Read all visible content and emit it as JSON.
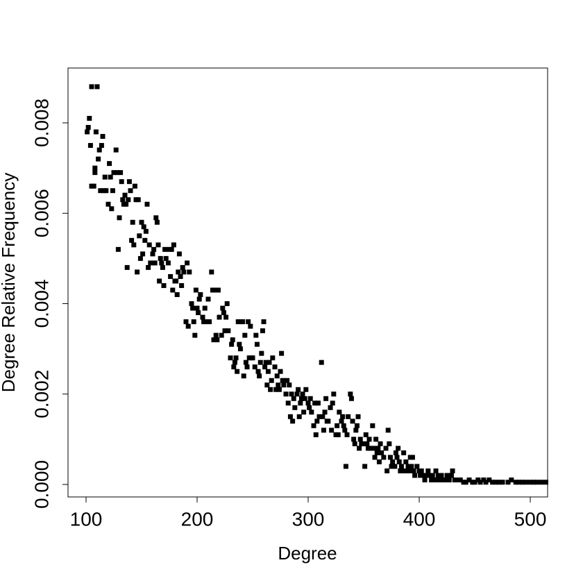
{
  "chart_data": {
    "type": "scatter",
    "xlabel": "Degree",
    "ylabel": "Degree Relative Frequency",
    "color": "#000000",
    "xlim": [
      83.75,
      515.6
    ],
    "ylim": [
      -0.000276,
      0.009213
    ],
    "xticks": [
      100,
      200,
      300,
      400,
      500
    ],
    "yticks": [
      {
        "value": 0,
        "label": "0.000"
      },
      0.002,
      0.004,
      0.006,
      0.008
    ],
    "x": [
      101,
      102,
      103,
      104,
      105,
      105,
      107,
      108,
      108,
      109,
      110,
      111,
      112,
      113,
      114,
      115,
      116,
      117,
      118,
      120,
      121,
      122,
      123,
      124,
      125,
      127,
      128,
      129,
      130,
      131,
      132,
      133,
      134,
      135,
      136,
      137,
      138,
      139,
      140,
      141,
      142,
      143,
      144,
      145,
      146,
      147,
      148,
      149,
      150,
      151,
      152,
      153,
      154,
      155,
      156,
      157,
      158,
      160,
      161,
      162,
      163,
      164,
      165,
      166,
      167,
      168,
      169,
      170,
      171,
      172,
      174,
      175,
      176,
      177,
      178,
      179,
      180,
      181,
      182,
      183,
      184,
      185,
      186,
      187,
      188,
      190,
      191,
      192,
      193,
      195,
      196,
      197,
      198,
      199,
      200,
      201,
      202,
      203,
      205,
      206,
      207,
      208,
      210,
      211,
      213,
      214,
      215,
      216,
      217,
      218,
      219,
      220,
      222,
      223,
      224,
      225,
      226,
      227,
      228,
      230,
      231,
      232,
      233,
      234,
      235,
      236,
      237,
      238,
      239,
      240,
      241,
      242,
      243,
      244,
      245,
      246,
      247,
      248,
      249,
      250,
      252,
      253,
      254,
      255,
      256,
      257,
      258,
      259,
      260,
      261,
      262,
      263,
      264,
      265,
      266,
      267,
      268,
      270,
      271,
      272,
      273,
      274,
      275,
      276,
      277,
      278,
      280,
      281,
      282,
      283,
      284,
      285,
      286,
      287,
      288,
      290,
      291,
      292,
      293,
      294,
      295,
      296,
      297,
      298,
      300,
      301,
      302,
      303,
      305,
      306,
      307,
      308,
      309,
      310,
      312,
      313,
      314,
      315,
      316,
      317,
      318,
      320,
      321,
      322,
      323,
      325,
      326,
      327,
      328,
      330,
      331,
      332,
      333,
      334,
      335,
      336,
      338,
      339,
      340,
      341,
      342,
      343,
      344,
      345,
      346,
      347,
      348,
      350,
      351,
      352,
      353,
      354,
      355,
      356,
      358,
      359,
      360,
      361,
      362,
      363,
      364,
      365,
      366,
      368,
      370,
      371,
      372,
      373,
      374,
      375,
      376,
      378,
      379,
      380,
      381,
      382,
      383,
      384,
      386,
      387,
      388,
      390,
      391,
      392,
      393,
      394,
      395,
      396,
      398,
      400,
      401,
      402,
      404,
      405,
      406,
      408,
      410,
      411,
      412,
      414,
      415,
      417,
      418,
      420,
      422,
      424,
      425,
      427,
      429,
      430,
      432,
      435,
      437,
      440,
      442,
      445,
      448,
      450,
      453,
      455,
      458,
      460,
      463,
      466,
      469,
      472,
      475,
      480,
      483,
      487,
      490,
      493,
      496,
      500,
      503,
      506,
      510,
      514
    ],
    "values": [
      0.0078,
      0.0079,
      0.0081,
      0.0075,
      0.0066,
      0.0088,
      0.0066,
      0.007,
      0.0069,
      0.0078,
      0.0088,
      0.0072,
      0.0074,
      0.0065,
      0.0075,
      0.0077,
      0.0065,
      0.0068,
      0.0065,
      0.0062,
      0.0071,
      0.0068,
      0.0061,
      0.0065,
      0.0069,
      0.0074,
      0.0069,
      0.0052,
      0.0059,
      0.0069,
      0.0067,
      0.0063,
      0.0062,
      0.0064,
      0.0062,
      0.0048,
      0.0063,
      0.0067,
      0.0065,
      0.0054,
      0.0058,
      0.0053,
      0.0066,
      0.0063,
      0.0047,
      0.0063,
      0.0055,
      0.005,
      0.0058,
      0.0051,
      0.0057,
      0.0054,
      0.0056,
      0.0062,
      0.0048,
      0.0053,
      0.0049,
      0.0051,
      0.0052,
      0.0049,
      0.0059,
      0.0058,
      0.0053,
      0.0045,
      0.005,
      0.0049,
      0.0048,
      0.0044,
      0.0052,
      0.005,
      0.0049,
      0.0052,
      0.0046,
      0.0052,
      0.0043,
      0.0053,
      0.0045,
      0.0045,
      0.0042,
      0.0047,
      0.0051,
      0.0046,
      0.0044,
      0.0048,
      0.0047,
      0.0036,
      0.0049,
      0.0035,
      0.0047,
      0.004,
      0.0039,
      0.0036,
      0.0033,
      0.0043,
      0.0039,
      0.0038,
      0.0041,
      0.0042,
      0.0037,
      0.0036,
      0.0039,
      0.0036,
      0.0041,
      0.0036,
      0.0047,
      0.0043,
      0.0032,
      0.0043,
      0.0033,
      0.0032,
      0.0043,
      0.0037,
      0.0033,
      0.0039,
      0.0038,
      0.0034,
      0.0037,
      0.004,
      0.0034,
      0.0028,
      0.0031,
      0.0032,
      0.0026,
      0.0027,
      0.0028,
      0.0025,
      0.0036,
      0.0031,
      0.003,
      0.0036,
      0.0036,
      0.0024,
      0.0033,
      0.0027,
      0.0026,
      0.0036,
      0.0028,
      0.0035,
      0.0028,
      0.0028,
      0.0026,
      0.0033,
      0.0031,
      0.0025,
      0.0024,
      0.0027,
      0.0029,
      0.0034,
      0.0036,
      0.0026,
      0.0027,
      0.0022,
      0.0025,
      0.0027,
      0.0021,
      0.0023,
      0.0028,
      0.0026,
      0.0021,
      0.0024,
      0.0022,
      0.0021,
      0.0025,
      0.0029,
      0.0023,
      0.0022,
      0.002,
      0.0023,
      0.0018,
      0.0022,
      0.0015,
      0.002,
      0.0014,
      0.0019,
      0.0017,
      0.002,
      0.0021,
      0.0015,
      0.0018,
      0.0019,
      0.002,
      0.0016,
      0.0019,
      0.0021,
      0.0018,
      0.0017,
      0.0019,
      0.0016,
      0.0013,
      0.0018,
      0.0011,
      0.0014,
      0.0018,
      0.0015,
      0.0027,
      0.0015,
      0.0012,
      0.0016,
      0.0019,
      0.0014,
      0.0014,
      0.0017,
      0.0012,
      0.0018,
      0.002,
      0.0011,
      0.0013,
      0.0011,
      0.0016,
      0.0014,
      0.0015,
      0.0013,
      0.0012,
      0.0004,
      0.0011,
      0.0015,
      0.002,
      0.0019,
      0.0014,
      0.001,
      0.0009,
      0.0012,
      0.0013,
      0.0015,
      0.0008,
      0.001,
      0.0009,
      0.0009,
      0.0004,
      0.0011,
      0.0009,
      0.0008,
      0.001,
      0.0008,
      0.0013,
      0.0008,
      0.0006,
      0.001,
      0.0007,
      0.0008,
      0.0005,
      0.0009,
      0.0007,
      0.0006,
      0.0008,
      0.0003,
      0.0012,
      0.0009,
      0.0006,
      0.0004,
      0.0005,
      0.0004,
      0.0007,
      0.0006,
      0.0008,
      0.0005,
      0.0003,
      0.0004,
      0.0007,
      0.0003,
      0.0005,
      0.0004,
      0.0003,
      0.0006,
      0.0004,
      0.0006,
      0.0003,
      0.0002,
      0.0004,
      0.0003,
      0.0002,
      0.0003,
      0.0002,
      0.0001,
      0.0002,
      0.0003,
      0.0002,
      0.0001,
      0.0002,
      0.0001,
      0.0003,
      0.0002,
      0.0001,
      0.0002,
      0.0001,
      0.0001,
      0.0002,
      0.0001,
      0.0002,
      0.0003,
      0.0001,
      0.0001,
      0.0001,
      5e-05,
      5e-05,
      0.0001,
      5e-05,
      5e-05,
      0.0001,
      5e-05,
      0.0001,
      5e-05,
      0.0001,
      5e-05,
      5e-05,
      5e-05,
      5e-05,
      5e-05,
      0.0001,
      5e-05,
      5e-05,
      5e-05,
      5e-05,
      5e-05,
      5e-05,
      5e-05,
      5e-05,
      5e-05
    ]
  }
}
